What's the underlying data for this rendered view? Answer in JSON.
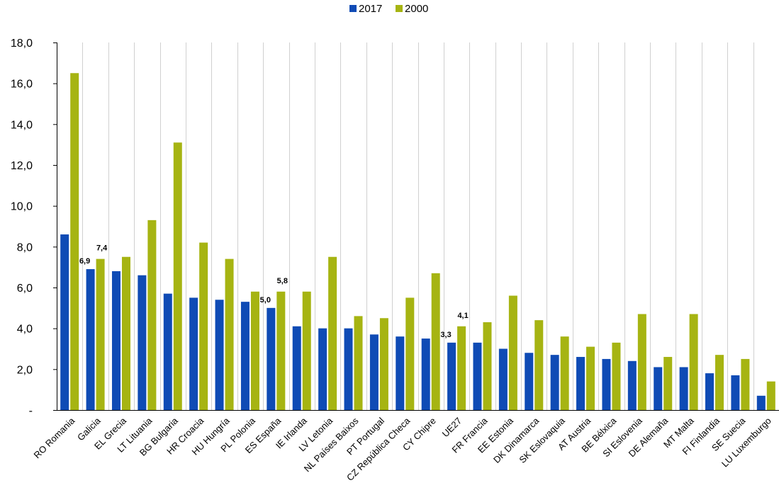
{
  "chart_data": {
    "type": "bar",
    "title": "",
    "xlabel": "",
    "ylabel": "",
    "ylim": [
      0,
      18
    ],
    "yticks": [
      "-",
      "2,0",
      "4,0",
      "6,0",
      "8,0",
      "10,0",
      "12,0",
      "14,0",
      "16,0",
      "18,0"
    ],
    "grid": "vertical separators between categories",
    "legend_position": "top-center",
    "categories": [
      "RO Romania",
      "Galicia",
      "EL Grecia",
      "LT Lituania",
      "BG Bulgaria",
      "HR Croacia",
      "HU Hungría",
      "PL Polonia",
      "ES España",
      "IE Irlanda",
      "LV Letonia",
      "NL Países Baixos",
      "PT Portugal",
      "CZ República Checa",
      "CY Chipre",
      "UE27",
      "FR Francia",
      "EE Estonia",
      "DK Dinamarca",
      "SK Eslovaquia",
      "AT Austria",
      "BE Bélxica",
      "SI Eslovenia",
      "DE Alemaña",
      "MT Malta",
      "FI Finlandia",
      "SE Suecia",
      "LU Luxemburgo"
    ],
    "series": [
      {
        "name": "2017",
        "color": "#0f4bb5",
        "values": [
          8.6,
          6.9,
          6.8,
          6.6,
          5.7,
          5.5,
          5.4,
          5.3,
          5.0,
          4.1,
          4.0,
          4.0,
          3.7,
          3.6,
          3.5,
          3.3,
          3.3,
          3.0,
          2.8,
          2.7,
          2.6,
          2.5,
          2.4,
          2.1,
          2.1,
          1.8,
          1.7,
          0.7
        ]
      },
      {
        "name": "2000",
        "color": "#a6b412",
        "values": [
          16.5,
          7.4,
          7.5,
          9.3,
          13.1,
          8.2,
          7.4,
          5.8,
          5.8,
          5.8,
          7.5,
          4.6,
          4.5,
          5.5,
          6.7,
          4.1,
          4.3,
          5.6,
          4.4,
          3.6,
          3.1,
          3.3,
          4.7,
          2.6,
          4.7,
          2.7,
          2.5,
          1.4
        ]
      }
    ],
    "data_labels": [
      {
        "category_index": 1,
        "series_index": 0,
        "text": "6,9"
      },
      {
        "category_index": 1,
        "series_index": 1,
        "text": "7,4"
      },
      {
        "category_index": 8,
        "series_index": 0,
        "text": "5,0"
      },
      {
        "category_index": 8,
        "series_index": 1,
        "text": "5,8"
      },
      {
        "category_index": 15,
        "series_index": 0,
        "text": "3,3"
      },
      {
        "category_index": 15,
        "series_index": 1,
        "text": "4,1"
      }
    ]
  }
}
